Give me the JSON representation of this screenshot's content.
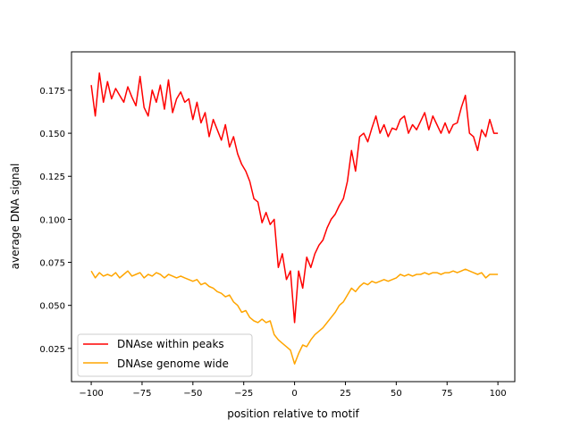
{
  "chart_data": {
    "type": "line",
    "title": "",
    "xlabel": "position relative to motif",
    "ylabel": "average DNA signal",
    "xlim": [
      -109.7,
      108.3
    ],
    "ylim": [
      0.0057,
      0.1973
    ],
    "xticks": [
      -100,
      -75,
      -50,
      -25,
      0,
      25,
      50,
      75,
      100
    ],
    "xtick_labels": [
      "−100",
      "−75",
      "−50",
      "−25",
      "0",
      "25",
      "50",
      "75",
      "100"
    ],
    "yticks": [
      0.025,
      0.05,
      0.075,
      0.1,
      0.125,
      0.15,
      0.175
    ],
    "ytick_labels": [
      "0.025",
      "0.050",
      "0.075",
      "0.100",
      "0.125",
      "0.150",
      "0.175"
    ],
    "grid": false,
    "legend": "lower-left",
    "x_start": -100,
    "x_step": 2,
    "series": [
      {
        "name": "DNAse within peaks",
        "color": "#ff0000",
        "values": [
          0.178,
          0.16,
          0.185,
          0.168,
          0.18,
          0.17,
          0.176,
          0.172,
          0.168,
          0.177,
          0.171,
          0.166,
          0.183,
          0.165,
          0.16,
          0.175,
          0.168,
          0.178,
          0.164,
          0.181,
          0.162,
          0.17,
          0.174,
          0.168,
          0.17,
          0.158,
          0.168,
          0.156,
          0.162,
          0.148,
          0.158,
          0.152,
          0.146,
          0.155,
          0.142,
          0.148,
          0.138,
          0.132,
          0.128,
          0.122,
          0.112,
          0.11,
          0.098,
          0.104,
          0.097,
          0.1,
          0.072,
          0.08,
          0.065,
          0.07,
          0.04,
          0.07,
          0.06,
          0.078,
          0.072,
          0.08,
          0.085,
          0.088,
          0.095,
          0.1,
          0.103,
          0.108,
          0.112,
          0.122,
          0.14,
          0.128,
          0.148,
          0.15,
          0.145,
          0.153,
          0.16,
          0.15,
          0.155,
          0.148,
          0.153,
          0.152,
          0.158,
          0.16,
          0.15,
          0.155,
          0.152,
          0.157,
          0.162,
          0.152,
          0.16,
          0.155,
          0.15,
          0.156,
          0.15,
          0.155,
          0.156,
          0.165,
          0.172,
          0.15,
          0.148,
          0.14,
          0.152,
          0.148,
          0.158,
          0.15,
          0.15
        ]
      },
      {
        "name": "DNAse genome wide",
        "color": "#ffa500",
        "values": [
          0.07,
          0.066,
          0.069,
          0.067,
          0.068,
          0.067,
          0.069,
          0.066,
          0.068,
          0.07,
          0.067,
          0.068,
          0.069,
          0.066,
          0.068,
          0.067,
          0.069,
          0.068,
          0.066,
          0.068,
          0.067,
          0.066,
          0.067,
          0.066,
          0.065,
          0.064,
          0.065,
          0.062,
          0.063,
          0.061,
          0.06,
          0.058,
          0.057,
          0.055,
          0.056,
          0.052,
          0.05,
          0.046,
          0.047,
          0.043,
          0.041,
          0.04,
          0.042,
          0.04,
          0.041,
          0.033,
          0.03,
          0.028,
          0.026,
          0.024,
          0.016,
          0.022,
          0.027,
          0.026,
          0.03,
          0.033,
          0.035,
          0.037,
          0.04,
          0.043,
          0.046,
          0.05,
          0.052,
          0.056,
          0.06,
          0.058,
          0.061,
          0.063,
          0.062,
          0.064,
          0.063,
          0.064,
          0.065,
          0.064,
          0.065,
          0.066,
          0.068,
          0.067,
          0.068,
          0.067,
          0.068,
          0.068,
          0.069,
          0.068,
          0.069,
          0.069,
          0.068,
          0.069,
          0.069,
          0.07,
          0.069,
          0.07,
          0.071,
          0.07,
          0.069,
          0.068,
          0.069,
          0.066,
          0.068,
          0.068,
          0.068
        ]
      }
    ]
  }
}
